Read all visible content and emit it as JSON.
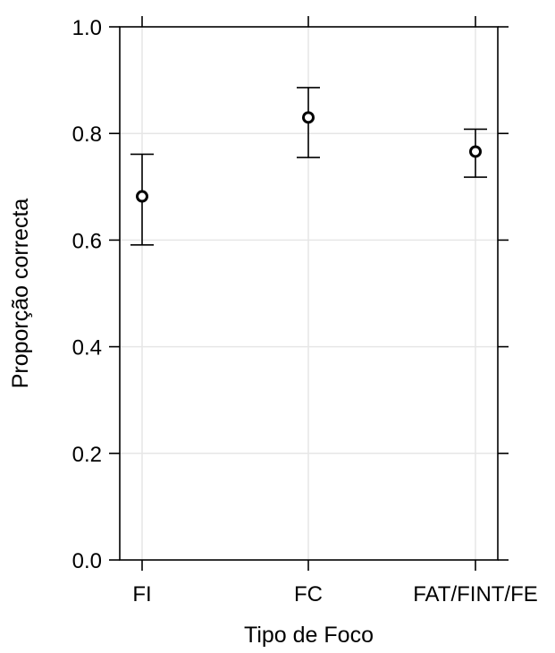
{
  "chart_data": {
    "type": "scatter",
    "xlabel": "Tipo de Foco",
    "ylabel": "Proporção correcta",
    "categories": [
      "FI",
      "FC",
      "FAT/FINT/FE"
    ],
    "points": [
      {
        "category": "FI",
        "value": 0.682,
        "lower": 0.591,
        "upper": 0.761
      },
      {
        "category": "FC",
        "value": 0.83,
        "lower": 0.755,
        "upper": 0.886
      },
      {
        "category": "FAT/FINT/FE",
        "value": 0.766,
        "lower": 0.718,
        "upper": 0.808
      }
    ],
    "ylim": [
      0.0,
      1.0
    ],
    "yticks": [
      "0.0",
      "0.2",
      "0.4",
      "0.6",
      "0.8",
      "1.0"
    ],
    "grid": true,
    "legend": "none",
    "colors": {
      "marker": "#000000",
      "grid": "#e6e6e6",
      "axis": "#000000"
    }
  }
}
